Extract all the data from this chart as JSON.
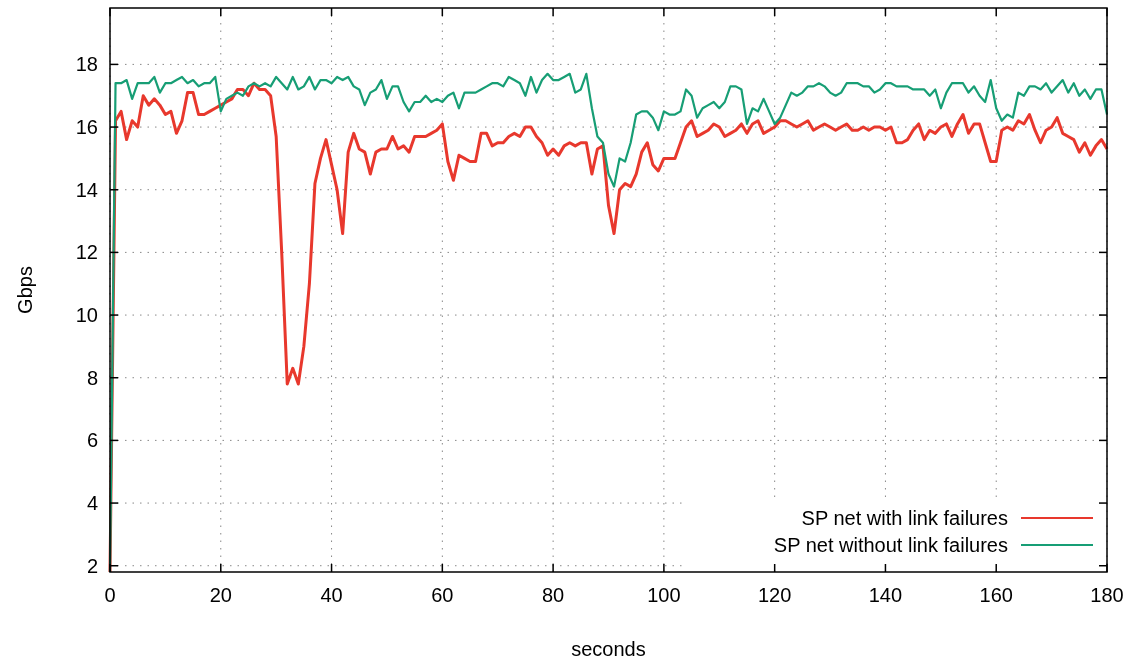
{
  "chart_data": {
    "type": "line",
    "xlabel": "seconds",
    "ylabel": "Gbps",
    "xlim": [
      0,
      180
    ],
    "ylim": [
      1.8,
      19.8
    ],
    "xticks": [
      0,
      20,
      40,
      60,
      80,
      100,
      120,
      140,
      160,
      180
    ],
    "yticks": [
      2,
      4,
      6,
      8,
      10,
      12,
      14,
      16,
      18
    ],
    "grid": true,
    "legend": "bottom right",
    "line_style": "solid",
    "marker": "none",
    "x": [
      0,
      1,
      2,
      3,
      4,
      5,
      6,
      7,
      8,
      9,
      10,
      11,
      12,
      13,
      14,
      15,
      16,
      17,
      18,
      19,
      20,
      21,
      22,
      23,
      24,
      25,
      26,
      27,
      28,
      29,
      30,
      31,
      32,
      33,
      34,
      35,
      36,
      37,
      38,
      39,
      40,
      41,
      42,
      43,
      44,
      45,
      46,
      47,
      48,
      49,
      50,
      51,
      52,
      53,
      54,
      55,
      56,
      57,
      58,
      59,
      60,
      61,
      62,
      63,
      64,
      65,
      66,
      67,
      68,
      69,
      70,
      71,
      72,
      73,
      74,
      75,
      76,
      77,
      78,
      79,
      80,
      81,
      82,
      83,
      84,
      85,
      86,
      87,
      88,
      89,
      90,
      91,
      92,
      93,
      94,
      95,
      96,
      97,
      98,
      99,
      100,
      101,
      102,
      103,
      104,
      105,
      106,
      107,
      108,
      109,
      110,
      111,
      112,
      113,
      114,
      115,
      116,
      117,
      118,
      119,
      120,
      121,
      122,
      123,
      124,
      125,
      126,
      127,
      128,
      129,
      130,
      131,
      132,
      133,
      134,
      135,
      136,
      137,
      138,
      139,
      140,
      141,
      142,
      143,
      144,
      145,
      146,
      147,
      148,
      149,
      150,
      151,
      152,
      153,
      154,
      155,
      156,
      157,
      158,
      159,
      160,
      161,
      162,
      163,
      164,
      165,
      166,
      167,
      168,
      169,
      170,
      171,
      172,
      173,
      174,
      175,
      176,
      177,
      178,
      179,
      180
    ],
    "series": [
      {
        "name": "SP net with link failures",
        "color": "#e8382d",
        "values": [
          1.8,
          16.2,
          16.5,
          15.6,
          16.2,
          16.0,
          17.0,
          16.7,
          16.9,
          16.7,
          16.4,
          16.5,
          15.8,
          16.2,
          17.1,
          17.1,
          16.4,
          16.4,
          16.5,
          16.6,
          16.7,
          16.8,
          16.9,
          17.2,
          17.2,
          17.0,
          17.4,
          17.2,
          17.2,
          17.0,
          15.7,
          12.0,
          7.8,
          8.3,
          7.8,
          9.0,
          11.0,
          14.2,
          15.0,
          15.6,
          14.8,
          14.0,
          12.6,
          15.2,
          15.8,
          15.3,
          15.2,
          14.5,
          15.2,
          15.3,
          15.3,
          15.7,
          15.3,
          15.4,
          15.2,
          15.7,
          15.7,
          15.7,
          15.8,
          15.9,
          16.1,
          14.9,
          14.3,
          15.1,
          15.0,
          14.9,
          14.9,
          15.8,
          15.8,
          15.4,
          15.5,
          15.5,
          15.7,
          15.8,
          15.7,
          16.0,
          16.0,
          15.7,
          15.5,
          15.1,
          15.3,
          15.1,
          15.4,
          15.5,
          15.4,
          15.5,
          15.5,
          14.5,
          15.3,
          15.4,
          13.5,
          12.6,
          14.0,
          14.2,
          14.1,
          14.5,
          15.2,
          15.5,
          14.8,
          14.6,
          15.0,
          15.0,
          15.0,
          15.5,
          16.0,
          16.2,
          15.7,
          15.8,
          15.9,
          16.1,
          16.0,
          15.7,
          15.8,
          15.9,
          16.1,
          15.8,
          16.1,
          16.2,
          15.8,
          15.9,
          16.0,
          16.2,
          16.2,
          16.1,
          16.0,
          16.1,
          16.2,
          15.9,
          16.0,
          16.1,
          16.0,
          15.9,
          16.0,
          16.1,
          15.9,
          15.9,
          16.0,
          15.9,
          16.0,
          16.0,
          15.9,
          16.0,
          15.5,
          15.5,
          15.6,
          15.9,
          16.1,
          15.6,
          15.9,
          15.8,
          16.0,
          16.1,
          15.7,
          16.1,
          16.4,
          15.8,
          16.1,
          16.1,
          15.5,
          14.9,
          14.9,
          15.9,
          16.0,
          15.9,
          16.2,
          16.1,
          16.4,
          15.9,
          15.5,
          15.9,
          16.0,
          16.3,
          15.8,
          15.7,
          15.6,
          15.2,
          15.5,
          15.1,
          15.4,
          15.6,
          15.3
        ]
      },
      {
        "name": "SP net without link failures",
        "color": "#179e75",
        "values": [
          1.8,
          17.4,
          17.4,
          17.5,
          16.9,
          17.4,
          17.4,
          17.4,
          17.6,
          17.1,
          17.4,
          17.4,
          17.5,
          17.6,
          17.4,
          17.5,
          17.3,
          17.4,
          17.4,
          17.6,
          16.5,
          16.9,
          17.0,
          17.1,
          17.0,
          17.3,
          17.4,
          17.3,
          17.4,
          17.3,
          17.6,
          17.4,
          17.2,
          17.6,
          17.2,
          17.3,
          17.6,
          17.2,
          17.5,
          17.5,
          17.4,
          17.6,
          17.5,
          17.6,
          17.3,
          17.2,
          16.7,
          17.1,
          17.2,
          17.5,
          16.9,
          17.3,
          17.3,
          16.8,
          16.5,
          16.8,
          16.8,
          17.0,
          16.8,
          16.9,
          16.8,
          17.0,
          17.1,
          16.6,
          17.1,
          17.1,
          17.1,
          17.2,
          17.3,
          17.4,
          17.4,
          17.3,
          17.6,
          17.5,
          17.4,
          17.0,
          17.6,
          17.1,
          17.5,
          17.7,
          17.5,
          17.5,
          17.6,
          17.7,
          17.1,
          17.2,
          17.7,
          16.6,
          15.7,
          15.5,
          14.5,
          14.1,
          15.0,
          14.9,
          15.5,
          16.4,
          16.5,
          16.5,
          16.3,
          15.9,
          16.5,
          16.4,
          16.4,
          16.5,
          17.2,
          17.0,
          16.3,
          16.6,
          16.7,
          16.8,
          16.6,
          16.8,
          17.3,
          17.3,
          17.2,
          16.1,
          16.6,
          16.5,
          16.9,
          16.5,
          16.1,
          16.3,
          16.7,
          17.1,
          17.0,
          17.1,
          17.3,
          17.3,
          17.4,
          17.3,
          17.1,
          17.0,
          17.1,
          17.4,
          17.4,
          17.4,
          17.3,
          17.3,
          17.1,
          17.2,
          17.4,
          17.4,
          17.3,
          17.3,
          17.3,
          17.2,
          17.2,
          17.2,
          17.0,
          17.2,
          16.6,
          17.1,
          17.4,
          17.4,
          17.4,
          17.1,
          17.3,
          17.0,
          16.8,
          17.5,
          16.6,
          16.2,
          16.4,
          16.3,
          17.1,
          17.0,
          17.3,
          17.3,
          17.2,
          17.4,
          17.1,
          17.3,
          17.5,
          17.1,
          17.4,
          17.0,
          17.2,
          16.9,
          17.2,
          17.2,
          16.4
        ]
      }
    ]
  }
}
